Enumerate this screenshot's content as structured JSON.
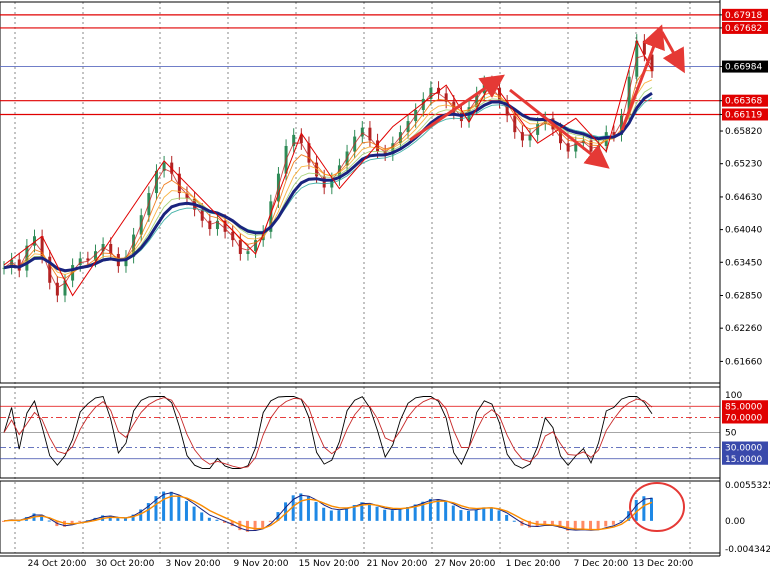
{
  "chart_data": {
    "type": "candlestick",
    "colors": {
      "up_candle": "#2e8b57",
      "down_candle": "#b22222",
      "ma_slow": "#1a237e",
      "ribbon": [
        "#c62828",
        "#ef6c00",
        "#f9a825",
        "#9ccc65",
        "#43a047",
        "#26a69a"
      ],
      "marker_line": "#e00000",
      "blue_line": "#5c6bc0",
      "stoch_main": "#000000",
      "stoch_signal": "#c62828",
      "macd_hist": "#1e88e5",
      "macd_hist_neg": "#ff8a65",
      "macd_line": "#1a237e",
      "macd_signal": "#fb8c00",
      "annotation": "#e53935"
    },
    "price_axis": {
      "ylim": [
        0.6127,
        0.6815
      ],
      "ticks": [
        "0.67918",
        "0.67682",
        "0.66984",
        "0.66368",
        "0.66119",
        "0.65820",
        "0.65230",
        "0.64630",
        "0.64040",
        "0.63450",
        "0.62850",
        "0.62260",
        "0.61660"
      ],
      "highlighted": [
        {
          "label": "0.67918",
          "style": "red"
        },
        {
          "label": "0.67682",
          "style": "red"
        },
        {
          "label": "0.66984",
          "style": "dark"
        },
        {
          "label": "0.66368",
          "style": "red"
        },
        {
          "label": "0.66119",
          "style": "red"
        }
      ]
    },
    "horizontal_levels": [
      {
        "value": 0.67918,
        "color": "red"
      },
      {
        "value": 0.67682,
        "color": "red"
      },
      {
        "value": 0.66984,
        "color": "blue"
      },
      {
        "value": 0.66368,
        "color": "red"
      },
      {
        "value": 0.66119,
        "color": "red"
      }
    ],
    "x_labels": [
      "24 Oct 20:00",
      "30 Oct 20:00",
      "3 Nov 20:00",
      "9 Nov 20:00",
      "15 Nov 20:00",
      "21 Nov 20:00",
      "27 Nov 20:00",
      "1 Dec 20:00",
      "7 Dec 20:00",
      "13 Dec 20:00"
    ],
    "close_series": [
      0.6335,
      0.635,
      0.633,
      0.6375,
      0.6392,
      0.6355,
      0.6308,
      0.6285,
      0.6312,
      0.634,
      0.6352,
      0.6348,
      0.6365,
      0.6378,
      0.636,
      0.6338,
      0.6355,
      0.6395,
      0.643,
      0.647,
      0.651,
      0.6525,
      0.6505,
      0.647,
      0.646,
      0.644,
      0.642,
      0.6405,
      0.642,
      0.64,
      0.6385,
      0.636,
      0.6365,
      0.6385,
      0.64,
      0.6455,
      0.6505,
      0.6555,
      0.6575,
      0.656,
      0.6525,
      0.65,
      0.648,
      0.6495,
      0.652,
      0.6545,
      0.6572,
      0.6588,
      0.6565,
      0.6545,
      0.654,
      0.656,
      0.658,
      0.66,
      0.662,
      0.664,
      0.666,
      0.665,
      0.6635,
      0.6615,
      0.66,
      0.6625,
      0.665,
      0.667,
      0.666,
      0.6635,
      0.661,
      0.658,
      0.6565,
      0.6575,
      0.6595,
      0.6605,
      0.6585,
      0.656,
      0.6545,
      0.656,
      0.6565,
      0.6545,
      0.6555,
      0.658,
      0.6575,
      0.661,
      0.668,
      0.6745,
      0.672,
      0.669
    ],
    "stochastic": {
      "ylim": [
        0,
        100
      ],
      "top_label": "100",
      "levels": [
        {
          "value": 85,
          "label": "85.0000",
          "color": "red"
        },
        {
          "value": 70,
          "label": "70.0000",
          "color": "red"
        },
        {
          "value": 50,
          "label": "50",
          "color": "gray"
        },
        {
          "value": 30,
          "label": "30.0000",
          "color": "blue"
        },
        {
          "value": 15,
          "label": "15.0000",
          "color": "blue"
        }
      ]
    },
    "macd": {
      "ticks": [
        "0.0055325",
        "0.00",
        "-0.0043426"
      ],
      "ylim": [
        -0.0043426,
        0.0055325
      ]
    }
  }
}
